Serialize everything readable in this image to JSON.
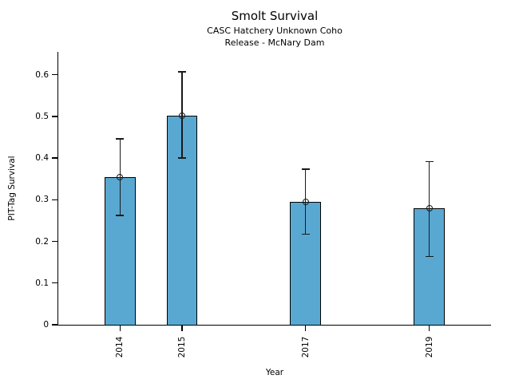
{
  "chart_data": {
    "type": "bar",
    "title": "Smolt Survival",
    "subtitle_line1": "CASC Hatchery Unknown Coho",
    "subtitle_line2": "Release - McNary Dam",
    "xlabel": "Year",
    "ylabel": "PIT-Tag Survival",
    "categories": [
      "2014",
      "2015",
      "2017",
      "2019"
    ],
    "x_years": [
      2014,
      2015,
      2017,
      2019
    ],
    "values": [
      0.355,
      0.502,
      0.294,
      0.279
    ],
    "error_low": [
      0.262,
      0.4,
      0.217,
      0.164
    ],
    "error_high": [
      0.446,
      0.607,
      0.373,
      0.392
    ],
    "ytick_values": [
      0,
      0.1,
      0.2,
      0.3,
      0.4,
      0.5,
      0.6
    ],
    "ytick_labels": [
      "0",
      "0.1",
      "0.2",
      "0.3",
      "0.4",
      "0.5",
      "0.6"
    ],
    "ylim": [
      0,
      0.655
    ],
    "xlim_years": [
      2013,
      2020
    ],
    "bar_width_years": 0.5,
    "bar_color": "#59A8D2",
    "bar_edge_color": "#000000",
    "error_color": "#1a1a1a",
    "marker_style": "open-circle",
    "grid": false,
    "legend": null,
    "x_tick_rotation_deg": 90
  }
}
